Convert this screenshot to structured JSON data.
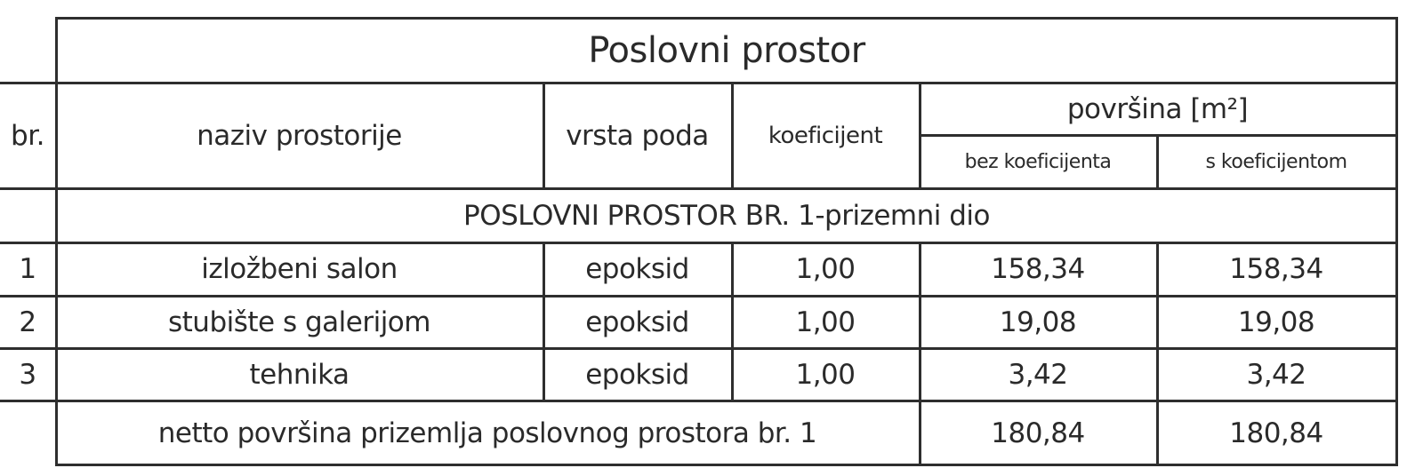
{
  "table": {
    "title": "Poslovni prostor",
    "headers": {
      "br": "br.",
      "naziv": "naziv prostorije",
      "vrsta": "vrsta poda",
      "koef": "koeficijent",
      "povrsina": "površina [m²]",
      "bez": "bez koeficijenta",
      "s": "s koeficijentom"
    },
    "section": "POSLOVNI PROSTOR BR. 1-prizemni dio",
    "rows": [
      {
        "br": "1",
        "naziv": "izložbeni salon",
        "vrsta": "epoksid",
        "koef": "1,00",
        "bez": "158,34",
        "s": "158,34"
      },
      {
        "br": "2",
        "naziv": "stubište s galerijom",
        "vrsta": "epoksid",
        "koef": "1,00",
        "bez": "19,08",
        "s": "19,08"
      },
      {
        "br": "3",
        "naziv": "tehnika",
        "vrsta": "epoksid",
        "koef": "1,00",
        "bez": "3,42",
        "s": "3,42"
      }
    ],
    "total": {
      "label": "netto površina prizemlja poslovnog prostora br. 1",
      "bez": "180,84",
      "s": "180,84"
    }
  }
}
